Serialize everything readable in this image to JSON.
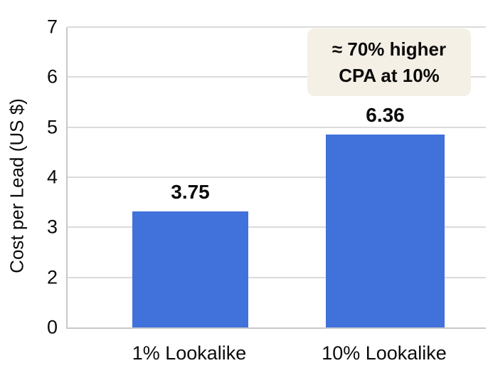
{
  "colors": {
    "bar": "#4171DB",
    "grid": "#DBDBDB",
    "axis": "#C8C8C8",
    "text": "#0B0B0B",
    "annotation_bg": "#F5F0E6",
    "background": "#FFFFFF"
  },
  "chart_data": {
    "type": "bar",
    "title": "",
    "xlabel": "",
    "ylabel": "Cost per Lead (US $)",
    "categories": [
      "1% Lookalike",
      "10% Lookalike"
    ],
    "values": [
      3.75,
      6.36
    ],
    "value_labels": [
      "3.75",
      "6.36"
    ],
    "ytick_labels_top_to_bottom": [
      "7",
      "6",
      "5",
      "4",
      "3",
      "2",
      "0"
    ],
    "ylim_displayed": [
      0,
      7
    ],
    "grid": true,
    "legend": false,
    "annotation": {
      "text": "≈ 70% higher CPA at 10%",
      "lines": [
        "≈ 70% higher",
        "CPA at 10%"
      ]
    },
    "drawn_bar_top_values_on_axis": [
      3.35,
      4.85
    ],
    "drawn_bar_height_fractions": [
      0.386,
      0.642
    ]
  }
}
